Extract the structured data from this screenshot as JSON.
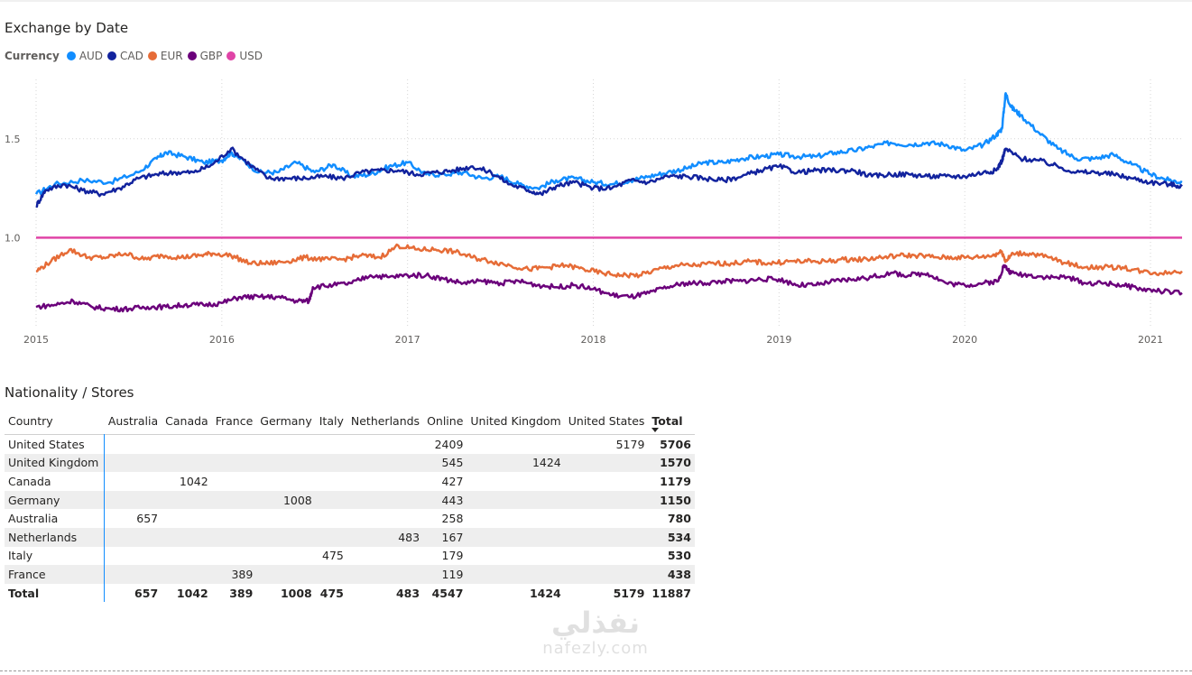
{
  "chart": {
    "title": "Exchange by Date",
    "legend_title": "Currency"
  },
  "chart_data": {
    "type": "line",
    "title": "Exchange by Date",
    "legend_title": "Currency",
    "xlabel": "",
    "ylabel": "",
    "x_ticks": [
      "2015",
      "2016",
      "2017",
      "2018",
      "2019",
      "2020",
      "2021"
    ],
    "x_range": [
      2015.0,
      2021.17
    ],
    "y_ticks": [
      "1.0",
      "1.5"
    ],
    "y_range": [
      0.55,
      1.8
    ],
    "grid": "dotted",
    "legend_position": "top-left",
    "series": [
      {
        "name": "AUD",
        "color": "#118dff",
        "points": [
          [
            2015.0,
            1.22
          ],
          [
            2015.1,
            1.27
          ],
          [
            2015.25,
            1.29
          ],
          [
            2015.4,
            1.28
          ],
          [
            2015.55,
            1.33
          ],
          [
            2015.65,
            1.4
          ],
          [
            2015.7,
            1.43
          ],
          [
            2015.8,
            1.41
          ],
          [
            2015.9,
            1.38
          ],
          [
            2016.0,
            1.39
          ],
          [
            2016.05,
            1.43
          ],
          [
            2016.1,
            1.4
          ],
          [
            2016.2,
            1.33
          ],
          [
            2016.3,
            1.33
          ],
          [
            2016.4,
            1.38
          ],
          [
            2016.5,
            1.33
          ],
          [
            2016.6,
            1.37
          ],
          [
            2016.7,
            1.31
          ],
          [
            2016.8,
            1.32
          ],
          [
            2016.9,
            1.36
          ],
          [
            2017.0,
            1.38
          ],
          [
            2017.1,
            1.32
          ],
          [
            2017.2,
            1.32
          ],
          [
            2017.3,
            1.33
          ],
          [
            2017.4,
            1.3
          ],
          [
            2017.5,
            1.31
          ],
          [
            2017.6,
            1.27
          ],
          [
            2017.7,
            1.25
          ],
          [
            2017.8,
            1.29
          ],
          [
            2017.9,
            1.3
          ],
          [
            2018.0,
            1.28
          ],
          [
            2018.1,
            1.27
          ],
          [
            2018.2,
            1.29
          ],
          [
            2018.3,
            1.31
          ],
          [
            2018.4,
            1.33
          ],
          [
            2018.5,
            1.35
          ],
          [
            2018.6,
            1.38
          ],
          [
            2018.7,
            1.38
          ],
          [
            2018.8,
            1.4
          ],
          [
            2018.9,
            1.41
          ],
          [
            2019.0,
            1.42
          ],
          [
            2019.1,
            1.41
          ],
          [
            2019.2,
            1.41
          ],
          [
            2019.3,
            1.43
          ],
          [
            2019.4,
            1.44
          ],
          [
            2019.5,
            1.46
          ],
          [
            2019.6,
            1.48
          ],
          [
            2019.7,
            1.47
          ],
          [
            2019.8,
            1.48
          ],
          [
            2019.9,
            1.47
          ],
          [
            2020.0,
            1.44
          ],
          [
            2020.1,
            1.47
          ],
          [
            2020.17,
            1.52
          ],
          [
            2020.2,
            1.55
          ],
          [
            2020.22,
            1.73
          ],
          [
            2020.25,
            1.66
          ],
          [
            2020.3,
            1.62
          ],
          [
            2020.4,
            1.53
          ],
          [
            2020.5,
            1.45
          ],
          [
            2020.6,
            1.4
          ],
          [
            2020.7,
            1.4
          ],
          [
            2020.8,
            1.42
          ],
          [
            2020.9,
            1.37
          ],
          [
            2021.0,
            1.32
          ],
          [
            2021.1,
            1.29
          ],
          [
            2021.17,
            1.28
          ]
        ]
      },
      {
        "name": "CAD",
        "color": "#12239e",
        "points": [
          [
            2015.0,
            1.16
          ],
          [
            2015.05,
            1.24
          ],
          [
            2015.15,
            1.27
          ],
          [
            2015.25,
            1.24
          ],
          [
            2015.35,
            1.22
          ],
          [
            2015.45,
            1.25
          ],
          [
            2015.55,
            1.3
          ],
          [
            2015.65,
            1.32
          ],
          [
            2015.75,
            1.33
          ],
          [
            2015.85,
            1.33
          ],
          [
            2015.95,
            1.37
          ],
          [
            2016.05,
            1.45
          ],
          [
            2016.15,
            1.37
          ],
          [
            2016.25,
            1.3
          ],
          [
            2016.35,
            1.3
          ],
          [
            2016.45,
            1.3
          ],
          [
            2016.55,
            1.31
          ],
          [
            2016.65,
            1.3
          ],
          [
            2016.75,
            1.33
          ],
          [
            2016.85,
            1.34
          ],
          [
            2016.95,
            1.34
          ],
          [
            2017.05,
            1.32
          ],
          [
            2017.15,
            1.33
          ],
          [
            2017.25,
            1.34
          ],
          [
            2017.35,
            1.36
          ],
          [
            2017.45,
            1.33
          ],
          [
            2017.55,
            1.27
          ],
          [
            2017.65,
            1.24
          ],
          [
            2017.72,
            1.22
          ],
          [
            2017.8,
            1.26
          ],
          [
            2017.9,
            1.28
          ],
          [
            2018.0,
            1.25
          ],
          [
            2018.1,
            1.25
          ],
          [
            2018.2,
            1.29
          ],
          [
            2018.3,
            1.28
          ],
          [
            2018.4,
            1.31
          ],
          [
            2018.5,
            1.31
          ],
          [
            2018.6,
            1.3
          ],
          [
            2018.7,
            1.29
          ],
          [
            2018.8,
            1.31
          ],
          [
            2018.9,
            1.34
          ],
          [
            2019.0,
            1.36
          ],
          [
            2019.1,
            1.33
          ],
          [
            2019.2,
            1.34
          ],
          [
            2019.3,
            1.34
          ],
          [
            2019.4,
            1.34
          ],
          [
            2019.5,
            1.31
          ],
          [
            2019.6,
            1.32
          ],
          [
            2019.7,
            1.32
          ],
          [
            2019.8,
            1.31
          ],
          [
            2019.9,
            1.31
          ],
          [
            2020.0,
            1.31
          ],
          [
            2020.1,
            1.33
          ],
          [
            2020.17,
            1.34
          ],
          [
            2020.2,
            1.39
          ],
          [
            2020.22,
            1.45
          ],
          [
            2020.3,
            1.4
          ],
          [
            2020.4,
            1.39
          ],
          [
            2020.5,
            1.36
          ],
          [
            2020.6,
            1.33
          ],
          [
            2020.7,
            1.33
          ],
          [
            2020.8,
            1.32
          ],
          [
            2020.9,
            1.3
          ],
          [
            2021.0,
            1.28
          ],
          [
            2021.1,
            1.27
          ],
          [
            2021.17,
            1.26
          ]
        ]
      },
      {
        "name": "EUR",
        "color": "#e66c37",
        "points": [
          [
            2015.0,
            0.83
          ],
          [
            2015.08,
            0.88
          ],
          [
            2015.18,
            0.94
          ],
          [
            2015.28,
            0.9
          ],
          [
            2015.38,
            0.9
          ],
          [
            2015.48,
            0.92
          ],
          [
            2015.58,
            0.89
          ],
          [
            2015.68,
            0.91
          ],
          [
            2015.78,
            0.9
          ],
          [
            2015.88,
            0.91
          ],
          [
            2015.95,
            0.92
          ],
          [
            2016.05,
            0.91
          ],
          [
            2016.15,
            0.87
          ],
          [
            2016.25,
            0.87
          ],
          [
            2016.35,
            0.88
          ],
          [
            2016.45,
            0.9
          ],
          [
            2016.55,
            0.89
          ],
          [
            2016.65,
            0.89
          ],
          [
            2016.75,
            0.91
          ],
          [
            2016.85,
            0.9
          ],
          [
            2016.95,
            0.96
          ],
          [
            2017.05,
            0.94
          ],
          [
            2017.15,
            0.94
          ],
          [
            2017.25,
            0.93
          ],
          [
            2017.35,
            0.9
          ],
          [
            2017.45,
            0.88
          ],
          [
            2017.55,
            0.86
          ],
          [
            2017.65,
            0.84
          ],
          [
            2017.75,
            0.85
          ],
          [
            2017.85,
            0.86
          ],
          [
            2017.95,
            0.84
          ],
          [
            2018.05,
            0.82
          ],
          [
            2018.15,
            0.81
          ],
          [
            2018.25,
            0.81
          ],
          [
            2018.35,
            0.84
          ],
          [
            2018.45,
            0.86
          ],
          [
            2018.55,
            0.86
          ],
          [
            2018.65,
            0.87
          ],
          [
            2018.75,
            0.87
          ],
          [
            2018.85,
            0.88
          ],
          [
            2018.95,
            0.87
          ],
          [
            2019.05,
            0.88
          ],
          [
            2019.15,
            0.88
          ],
          [
            2019.25,
            0.88
          ],
          [
            2019.35,
            0.89
          ],
          [
            2019.45,
            0.89
          ],
          [
            2019.55,
            0.9
          ],
          [
            2019.65,
            0.91
          ],
          [
            2019.75,
            0.91
          ],
          [
            2019.85,
            0.9
          ],
          [
            2019.95,
            0.9
          ],
          [
            2020.05,
            0.9
          ],
          [
            2020.15,
            0.91
          ],
          [
            2020.2,
            0.93
          ],
          [
            2020.22,
            0.88
          ],
          [
            2020.26,
            0.92
          ],
          [
            2020.35,
            0.92
          ],
          [
            2020.45,
            0.9
          ],
          [
            2020.55,
            0.87
          ],
          [
            2020.65,
            0.85
          ],
          [
            2020.75,
            0.85
          ],
          [
            2020.85,
            0.85
          ],
          [
            2020.95,
            0.83
          ],
          [
            2021.05,
            0.82
          ],
          [
            2021.17,
            0.83
          ]
        ]
      },
      {
        "name": "GBP",
        "color": "#6b007b",
        "points": [
          [
            2015.0,
            0.65
          ],
          [
            2015.1,
            0.66
          ],
          [
            2015.2,
            0.68
          ],
          [
            2015.3,
            0.65
          ],
          [
            2015.4,
            0.64
          ],
          [
            2015.5,
            0.64
          ],
          [
            2015.6,
            0.65
          ],
          [
            2015.7,
            0.65
          ],
          [
            2015.8,
            0.66
          ],
          [
            2015.9,
            0.66
          ],
          [
            2016.0,
            0.67
          ],
          [
            2016.1,
            0.7
          ],
          [
            2016.2,
            0.7
          ],
          [
            2016.3,
            0.7
          ],
          [
            2016.4,
            0.68
          ],
          [
            2016.47,
            0.68
          ],
          [
            2016.49,
            0.75
          ],
          [
            2016.6,
            0.76
          ],
          [
            2016.7,
            0.77
          ],
          [
            2016.8,
            0.81
          ],
          [
            2016.9,
            0.8
          ],
          [
            2017.0,
            0.81
          ],
          [
            2017.1,
            0.81
          ],
          [
            2017.2,
            0.79
          ],
          [
            2017.3,
            0.77
          ],
          [
            2017.4,
            0.78
          ],
          [
            2017.5,
            0.77
          ],
          [
            2017.6,
            0.78
          ],
          [
            2017.7,
            0.76
          ],
          [
            2017.8,
            0.75
          ],
          [
            2017.9,
            0.76
          ],
          [
            2018.0,
            0.74
          ],
          [
            2018.1,
            0.71
          ],
          [
            2018.2,
            0.7
          ],
          [
            2018.3,
            0.72
          ],
          [
            2018.4,
            0.75
          ],
          [
            2018.5,
            0.77
          ],
          [
            2018.6,
            0.77
          ],
          [
            2018.7,
            0.78
          ],
          [
            2018.8,
            0.78
          ],
          [
            2018.9,
            0.79
          ],
          [
            2019.0,
            0.79
          ],
          [
            2019.1,
            0.76
          ],
          [
            2019.2,
            0.76
          ],
          [
            2019.3,
            0.78
          ],
          [
            2019.4,
            0.79
          ],
          [
            2019.5,
            0.8
          ],
          [
            2019.6,
            0.82
          ],
          [
            2019.7,
            0.81
          ],
          [
            2019.8,
            0.82
          ],
          [
            2019.9,
            0.77
          ],
          [
            2020.0,
            0.76
          ],
          [
            2020.1,
            0.77
          ],
          [
            2020.18,
            0.78
          ],
          [
            2020.21,
            0.86
          ],
          [
            2020.25,
            0.82
          ],
          [
            2020.35,
            0.81
          ],
          [
            2020.45,
            0.8
          ],
          [
            2020.55,
            0.8
          ],
          [
            2020.65,
            0.77
          ],
          [
            2020.75,
            0.77
          ],
          [
            2020.85,
            0.76
          ],
          [
            2020.95,
            0.74
          ],
          [
            2021.05,
            0.73
          ],
          [
            2021.17,
            0.72
          ]
        ]
      },
      {
        "name": "USD",
        "color": "#e044a7",
        "points": [
          [
            2015.0,
            1.0
          ],
          [
            2021.17,
            1.0
          ]
        ]
      }
    ]
  },
  "table": {
    "title": "Nationality / Stores",
    "corner_header": "Country",
    "columns": [
      "Australia",
      "Canada",
      "France",
      "Germany",
      "Italy",
      "Netherlands",
      "Online",
      "United Kingdom",
      "United States",
      "Total"
    ],
    "rows": [
      {
        "label": "United States",
        "cells": [
          "",
          "",
          "",
          "",
          "",
          "",
          "2409",
          "",
          "5179",
          "5706"
        ]
      },
      {
        "label": "United Kingdom",
        "cells": [
          "",
          "",
          "",
          "",
          "",
          "",
          "545",
          "1424",
          "",
          "1570"
        ]
      },
      {
        "label": "Canada",
        "cells": [
          "",
          "1042",
          "",
          "",
          "",
          "",
          "427",
          "",
          "",
          "1179"
        ]
      },
      {
        "label": "Germany",
        "cells": [
          "",
          "",
          "",
          "1008",
          "",
          "",
          "443",
          "",
          "",
          "1150"
        ]
      },
      {
        "label": "Australia",
        "cells": [
          "657",
          "",
          "",
          "",
          "",
          "",
          "258",
          "",
          "",
          "780"
        ]
      },
      {
        "label": "Netherlands",
        "cells": [
          "",
          "",
          "",
          "",
          "",
          "483",
          "167",
          "",
          "",
          "534"
        ]
      },
      {
        "label": "Italy",
        "cells": [
          "",
          "",
          "",
          "",
          "475",
          "",
          "179",
          "",
          "",
          "530"
        ]
      },
      {
        "label": "France",
        "cells": [
          "",
          "",
          "389",
          "",
          "",
          "",
          "119",
          "",
          "",
          "438"
        ]
      }
    ],
    "total_row": {
      "label": "Total",
      "cells": [
        "657",
        "1042",
        "389",
        "1008",
        "475",
        "483",
        "4547",
        "1424",
        "5179",
        "11887"
      ]
    }
  },
  "watermark": {
    "arabic": "نفذلي",
    "latin": "nafezly.com"
  }
}
